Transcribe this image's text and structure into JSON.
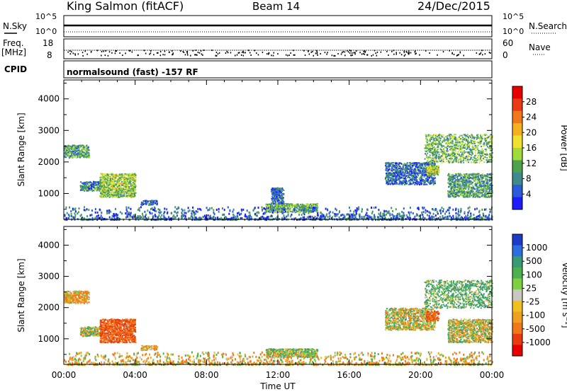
{
  "header": {
    "station": "King Salmon (fitACF)",
    "beam": "Beam 14",
    "date": "24/Dec/2015"
  },
  "panels": {
    "nsky_label": "N.Sky",
    "nsky_ticks": [
      "10^5",
      "10^0"
    ],
    "nsearch_label": "N.Search",
    "nsearch_ticks": [
      "10^5",
      "10^0"
    ],
    "freq_label": "Freq.",
    "freq_unit": "[MHz]",
    "freq_ticks": [
      "18",
      "8"
    ],
    "nave_label": "Nave",
    "nave_ticks": [
      "60",
      "0"
    ],
    "cpid_label": "CPID",
    "cpid_text": "normalsound (fast) -157 RF"
  },
  "chart_data": [
    {
      "type": "heatmap",
      "title": "",
      "xlabel": "Time UT",
      "ylabel": "Slant Range [km]",
      "xlim": [
        0,
        24
      ],
      "xticks": [
        "00:00",
        "04:00",
        "08:00",
        "12:00",
        "16:00",
        "20:00",
        "00:00"
      ],
      "ylim": [
        180,
        4600
      ],
      "yticks": [
        1000,
        2000,
        3000,
        4000
      ],
      "colorbar": {
        "label": "Power [dB]",
        "ticks": [
          "4",
          "8",
          "12",
          "16",
          "20",
          "24",
          "28"
        ],
        "colors": [
          "#1c1cff",
          "#2a5ad8",
          "#3f8a8c",
          "#4ea24e",
          "#9fdc3a",
          "#f0e030",
          "#f5b020",
          "#f07818",
          "#ea3c14",
          "#e80000"
        ]
      },
      "regions": [
        {
          "t0": 0.0,
          "t1": 1.4,
          "r0": 2150,
          "r1": 2550,
          "value": 10
        },
        {
          "t0": 0.9,
          "t1": 2.2,
          "r0": 1100,
          "r1": 1400,
          "value": 8
        },
        {
          "t0": 2.0,
          "t1": 4.0,
          "r0": 900,
          "r1": 1650,
          "value": 14
        },
        {
          "t0": 4.3,
          "t1": 5.2,
          "r0": 650,
          "r1": 800,
          "value": 6
        },
        {
          "t0": 11.3,
          "t1": 14.2,
          "r0": 420,
          "r1": 700,
          "value": 12
        },
        {
          "t0": 11.6,
          "t1": 12.3,
          "r0": 700,
          "r1": 1200,
          "value": 6
        },
        {
          "t0": 0.0,
          "t1": 24.0,
          "r0": 200,
          "r1": 600,
          "value": 6
        },
        {
          "t0": 18.0,
          "t1": 20.8,
          "r0": 1300,
          "r1": 2000,
          "value": 6
        },
        {
          "t0": 20.2,
          "t1": 24.0,
          "r0": 2000,
          "r1": 2900,
          "value": 12
        },
        {
          "t0": 20.3,
          "t1": 21.0,
          "r0": 1600,
          "r1": 1900,
          "value": 16
        },
        {
          "t0": 21.5,
          "t1": 24.0,
          "r0": 900,
          "r1": 1650,
          "value": 10
        }
      ]
    },
    {
      "type": "heatmap",
      "title": "",
      "xlabel": "Time UT",
      "ylabel": "Slant Range [km]",
      "xlim": [
        0,
        24
      ],
      "xticks": [
        "00:00",
        "04:00",
        "08:00",
        "12:00",
        "16:00",
        "20:00",
        "00:00"
      ],
      "ylim": [
        180,
        4600
      ],
      "yticks": [
        1000,
        2000,
        3000,
        4000
      ],
      "colorbar": {
        "label": "Velocity [m s⁻¹]",
        "ticks": [
          "1000",
          "500",
          "100",
          "25",
          "-25",
          "-100",
          "-500",
          "-1000"
        ],
        "colors": [
          "#1c3cc8",
          "#2c6ee0",
          "#3a9a78",
          "#4cb050",
          "#7ed040",
          "#c8c8c0",
          "#f0c020",
          "#f0a020",
          "#f07818",
          "#e83c10",
          "#e80000"
        ]
      },
      "regions": [
        {
          "t0": 0.0,
          "t1": 1.4,
          "r0": 2150,
          "r1": 2550,
          "value": -100
        },
        {
          "t0": 0.9,
          "t1": 2.2,
          "r0": 1100,
          "r1": 1400,
          "value": 0
        },
        {
          "t0": 2.0,
          "t1": 4.0,
          "r0": 900,
          "r1": 1650,
          "value": -300
        },
        {
          "t0": 4.3,
          "t1": 5.2,
          "r0": 650,
          "r1": 800,
          "value": -100
        },
        {
          "t0": 11.3,
          "t1": 14.2,
          "r0": 420,
          "r1": 700,
          "value": 50
        },
        {
          "t0": 0.0,
          "t1": 24.0,
          "r0": 200,
          "r1": 600,
          "value": -50
        },
        {
          "t0": 18.0,
          "t1": 20.8,
          "r0": 1300,
          "r1": 2000,
          "value": 0
        },
        {
          "t0": 20.2,
          "t1": 24.0,
          "r0": 2000,
          "r1": 2900,
          "value": 100
        },
        {
          "t0": 20.3,
          "t1": 21.0,
          "r0": 1600,
          "r1": 1900,
          "value": -300
        },
        {
          "t0": 21.5,
          "t1": 24.0,
          "r0": 900,
          "r1": 1650,
          "value": 0
        }
      ]
    }
  ]
}
